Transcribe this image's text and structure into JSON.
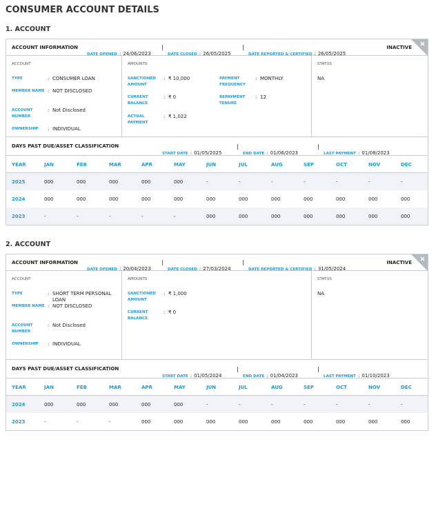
{
  "title": "CONSUMER ACCOUNT DETAILS",
  "colon": ":",
  "accounts": [
    {
      "heading": "1. ACCOUNT",
      "info": {
        "title": "ACCOUNT INFORMATION",
        "items": [
          {
            "label": "DATE OPENED",
            "value": "24/06/2023"
          },
          {
            "label": "DATE CLOSED",
            "value": "26/05/2025"
          },
          {
            "label": "DATE REPORTED & CERTIFIED",
            "value": "26/05/2025"
          }
        ],
        "status": "INACTIVE"
      },
      "account": {
        "title": "ACCOUNT",
        "fields": [
          {
            "label": "TYPE",
            "value": "CONSUMER LOAN"
          },
          {
            "label": "MEMBER NAME",
            "value": "NOT DISCLOSED"
          },
          {
            "label": "ACCOUNT NUMBER",
            "value": "Not Disclosed"
          },
          {
            "label": "OWNERSHIP",
            "value": "INDIVIDUAL"
          }
        ]
      },
      "amounts": {
        "title": "AMOUNTS",
        "columns": [
          [
            {
              "label": "SANCTIONED AMOUNT",
              "value": "₹ 10,000"
            },
            {
              "label": "CURRENT BALANCE",
              "value": "₹ 0"
            },
            {
              "label": "ACTUAL PAYMENT",
              "value": "₹ 1,022"
            }
          ],
          [
            {
              "label": "PAYMENT FREQUENCY",
              "value": "MONTHLY"
            },
            {
              "label": "REPAYMENT TENURE",
              "value": "12"
            }
          ]
        ]
      },
      "status": {
        "title": "STATUS",
        "value": "NA"
      },
      "dpd": {
        "title": "DAYS PAST DUE/ASSET CLASSIFICATION",
        "items": [
          {
            "label": "START DATE",
            "value": "01/05/2025"
          },
          {
            "label": "END DATE",
            "value": "01/06/2023"
          },
          {
            "label": "LAST PAYMENT",
            "value": "01/08/2023"
          }
        ],
        "header": [
          "YEAR",
          "JAN",
          "FEB",
          "MAR",
          "APR",
          "MAY",
          "JUN",
          "JUL",
          "AUG",
          "SEP",
          "OCT",
          "NOV",
          "DEC"
        ],
        "rows": [
          [
            "2025",
            "000",
            "000",
            "000",
            "000",
            "000",
            "-",
            "-",
            "-",
            "-",
            "-",
            "-",
            "-"
          ],
          [
            "2024",
            "000",
            "000",
            "000",
            "000",
            "000",
            "000",
            "000",
            "000",
            "000",
            "000",
            "000",
            "000"
          ],
          [
            "2023",
            "-",
            "-",
            "-",
            "-",
            "-",
            "000",
            "000",
            "000",
            "000",
            "000",
            "000",
            "000"
          ]
        ]
      }
    },
    {
      "heading": "2. ACCOUNT",
      "info": {
        "title": "ACCOUNT INFORMATION",
        "items": [
          {
            "label": "DATE OPENED",
            "value": "20/04/2023"
          },
          {
            "label": "DATE CLOSED",
            "value": "27/03/2024"
          },
          {
            "label": "DATE REPORTED & CERTIFIED",
            "value": "31/05/2024"
          }
        ],
        "status": "INACTIVE"
      },
      "account": {
        "title": "ACCOUNT",
        "fields": [
          {
            "label": "TYPE",
            "value": "SHORT TERM PERSONAL LOAN"
          },
          {
            "label": "MEMBER NAME",
            "value": "NOT DISCLOSED"
          },
          {
            "label": "ACCOUNT NUMBER",
            "value": "Not Disclosed"
          },
          {
            "label": "OWNERSHIP",
            "value": "INDIVIDUAL"
          }
        ]
      },
      "amounts": {
        "title": "AMOUNTS",
        "columns": [
          [
            {
              "label": "SANCTIONED AMOUNT",
              "value": "₹ 1,000"
            },
            {
              "label": "CURRENT BALANCE",
              "value": "₹ 0"
            }
          ]
        ]
      },
      "status": {
        "title": "STATUS",
        "value": "NA"
      },
      "dpd": {
        "title": "DAYS PAST DUE/ASSET CLASSIFICATION",
        "items": [
          {
            "label": "START DATE",
            "value": "01/05/2024"
          },
          {
            "label": "END DATE",
            "value": "01/04/2023"
          },
          {
            "label": "LAST PAYMENT",
            "value": "01/10/2023"
          }
        ],
        "header": [
          "YEAR",
          "JAN",
          "FEB",
          "MAR",
          "APR",
          "MAY",
          "JUN",
          "JUL",
          "AUG",
          "SEP",
          "OCT",
          "NOV",
          "DEC"
        ],
        "rows": [
          [
            "2024",
            "000",
            "000",
            "000",
            "000",
            "000",
            "-",
            "-",
            "-",
            "-",
            "-",
            "-",
            "-"
          ],
          [
            "2023",
            "-",
            "-",
            "-",
            "000",
            "000",
            "000",
            "000",
            "000",
            "000",
            "000",
            "000",
            "000"
          ]
        ]
      }
    }
  ]
}
